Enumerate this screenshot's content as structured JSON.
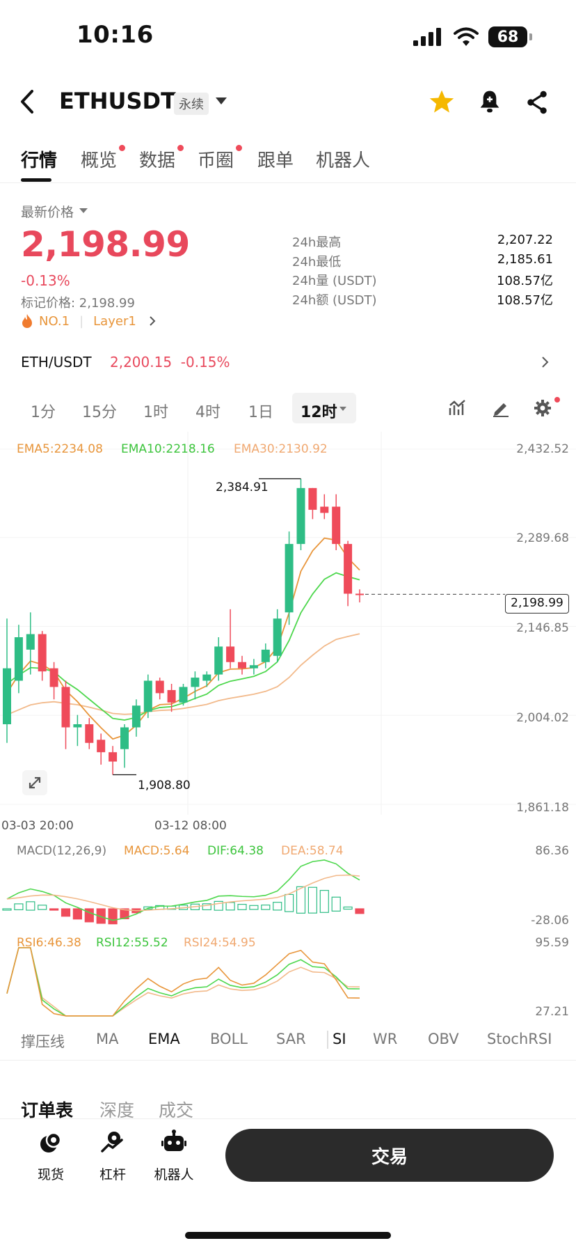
{
  "status": {
    "time": "10:16",
    "battery": "68"
  },
  "header": {
    "symbol": "ETHUSDT",
    "contract_type": "永续"
  },
  "tabs": [
    {
      "label": "行情",
      "dot": false
    },
    {
      "label": "概览",
      "dot": true
    },
    {
      "label": "数据",
      "dot": true
    },
    {
      "label": "币圈",
      "dot": true
    },
    {
      "label": "跟单",
      "dot": false
    },
    {
      "label": "机器人",
      "dot": false
    }
  ],
  "price": {
    "latest_label": "最新价格",
    "value": "2,198.99",
    "change": "-0.13%",
    "mark_price": "标记价格: 2,198.99",
    "rank": "NO.1",
    "sector": "Layer1"
  },
  "stats": [
    {
      "label": "24h最高",
      "value": "2,207.22"
    },
    {
      "label": "24h最低",
      "value": "2,185.61"
    },
    {
      "label": "24h量 (USDT)",
      "value": "108.57亿"
    },
    {
      "label": "24h额 (USDT)",
      "value": "108.57亿"
    }
  ],
  "spot": {
    "pair": "ETH/USDT",
    "price": "2,200.15",
    "change": "-0.15%"
  },
  "timeframes": [
    "1分",
    "15分",
    "1时",
    "4时",
    "1日"
  ],
  "active_timeframe": "12时",
  "chart": {
    "ema_labels": {
      "ema5": "EMA5:2234.08",
      "ema10": "EMA10:2218.16",
      "ema30": "EMA30:2130.92"
    },
    "price_axis": [
      "2,432.52",
      "2,289.68",
      "2,146.85",
      "2,004.02",
      "1,861.18"
    ],
    "current_price_tag": "2,198.99",
    "high_marker": "2,384.91",
    "low_marker": "1,908.80",
    "time_labels": [
      "03-03 20:00",
      "03-12 08:00"
    ],
    "macd_labels": {
      "name": "MACD(12,26,9)",
      "macd": "MACD:5.64",
      "dif": "DIF:64.38",
      "dea": "DEA:58.74"
    },
    "macd_axis": [
      "86.36",
      "-28.06"
    ],
    "rsi_labels": {
      "rsi6": "RSI6:46.38",
      "rsi12": "RSI12:55.52",
      "rsi24": "RSI24:54.95"
    },
    "rsi_axis": [
      "95.59",
      "27.21"
    ]
  },
  "chart_data": {
    "type": "candlestick",
    "ylim": [
      1861.18,
      2432.52
    ],
    "candles": [
      {
        "o": 1990,
        "h": 2160,
        "l": 1960,
        "c": 2080
      },
      {
        "o": 2060,
        "h": 2150,
        "l": 2040,
        "c": 2130
      },
      {
        "o": 2110,
        "h": 2170,
        "l": 2070,
        "c": 2135
      },
      {
        "o": 2135,
        "h": 2140,
        "l": 2060,
        "c": 2075
      },
      {
        "o": 2080,
        "h": 2090,
        "l": 2030,
        "c": 2050
      },
      {
        "o": 2050,
        "h": 2060,
        "l": 1950,
        "c": 1985
      },
      {
        "o": 1985,
        "h": 2005,
        "l": 1955,
        "c": 1990
      },
      {
        "o": 1990,
        "h": 2000,
        "l": 1950,
        "c": 1960
      },
      {
        "o": 1965,
        "h": 1975,
        "l": 1925,
        "c": 1945
      },
      {
        "o": 1945,
        "h": 1955,
        "l": 1908.8,
        "c": 1930
      },
      {
        "o": 1950,
        "h": 1990,
        "l": 1920,
        "c": 1985
      },
      {
        "o": 1985,
        "h": 2030,
        "l": 1970,
        "c": 2020
      },
      {
        "o": 2010,
        "h": 2070,
        "l": 2000,
        "c": 2060
      },
      {
        "o": 2060,
        "h": 2065,
        "l": 2030,
        "c": 2040
      },
      {
        "o": 2045,
        "h": 2055,
        "l": 2010,
        "c": 2025
      },
      {
        "o": 2025,
        "h": 2055,
        "l": 2020,
        "c": 2050
      },
      {
        "o": 2050,
        "h": 2075,
        "l": 2030,
        "c": 2065
      },
      {
        "o": 2060,
        "h": 2075,
        "l": 2050,
        "c": 2070
      },
      {
        "o": 2070,
        "h": 2130,
        "l": 2060,
        "c": 2115
      },
      {
        "o": 2115,
        "h": 2175,
        "l": 2080,
        "c": 2090
      },
      {
        "o": 2090,
        "h": 2100,
        "l": 2070,
        "c": 2080
      },
      {
        "o": 2080,
        "h": 2095,
        "l": 2070,
        "c": 2085
      },
      {
        "o": 2090,
        "h": 2120,
        "l": 2080,
        "c": 2110
      },
      {
        "o": 2100,
        "h": 2175,
        "l": 2090,
        "c": 2160
      },
      {
        "o": 2170,
        "h": 2300,
        "l": 2150,
        "c": 2280
      },
      {
        "o": 2280,
        "h": 2384.91,
        "l": 2270,
        "c": 2370
      },
      {
        "o": 2370,
        "h": 2370,
        "l": 2320,
        "c": 2335
      },
      {
        "o": 2340,
        "h": 2360,
        "l": 2320,
        "c": 2330
      },
      {
        "o": 2340,
        "h": 2360,
        "l": 2270,
        "c": 2280
      },
      {
        "o": 2280,
        "h": 2285,
        "l": 2180,
        "c": 2200
      },
      {
        "o": 2200,
        "h": 2207,
        "l": 2186,
        "c": 2199
      }
    ]
  },
  "indicators": [
    "撑压线",
    "MA",
    "EMA",
    "BOLL",
    "SAR",
    "SI",
    "WR",
    "OBV",
    "StochRSI"
  ],
  "active_indicator": "EMA",
  "book_tabs": [
    "订单表",
    "深度",
    "成交"
  ],
  "bottom_nav": [
    {
      "label": "现货",
      "icon": "spot-icon"
    },
    {
      "label": "杠杆",
      "icon": "margin-icon"
    },
    {
      "label": "机器人",
      "icon": "robot-icon"
    }
  ],
  "trade_button": "交易",
  "colors": {
    "up": "#2ebd85",
    "down": "#ef4b5a",
    "ema5": "#e8953a",
    "ema10": "#4cd74c",
    "ema30": "#f2b98a"
  }
}
